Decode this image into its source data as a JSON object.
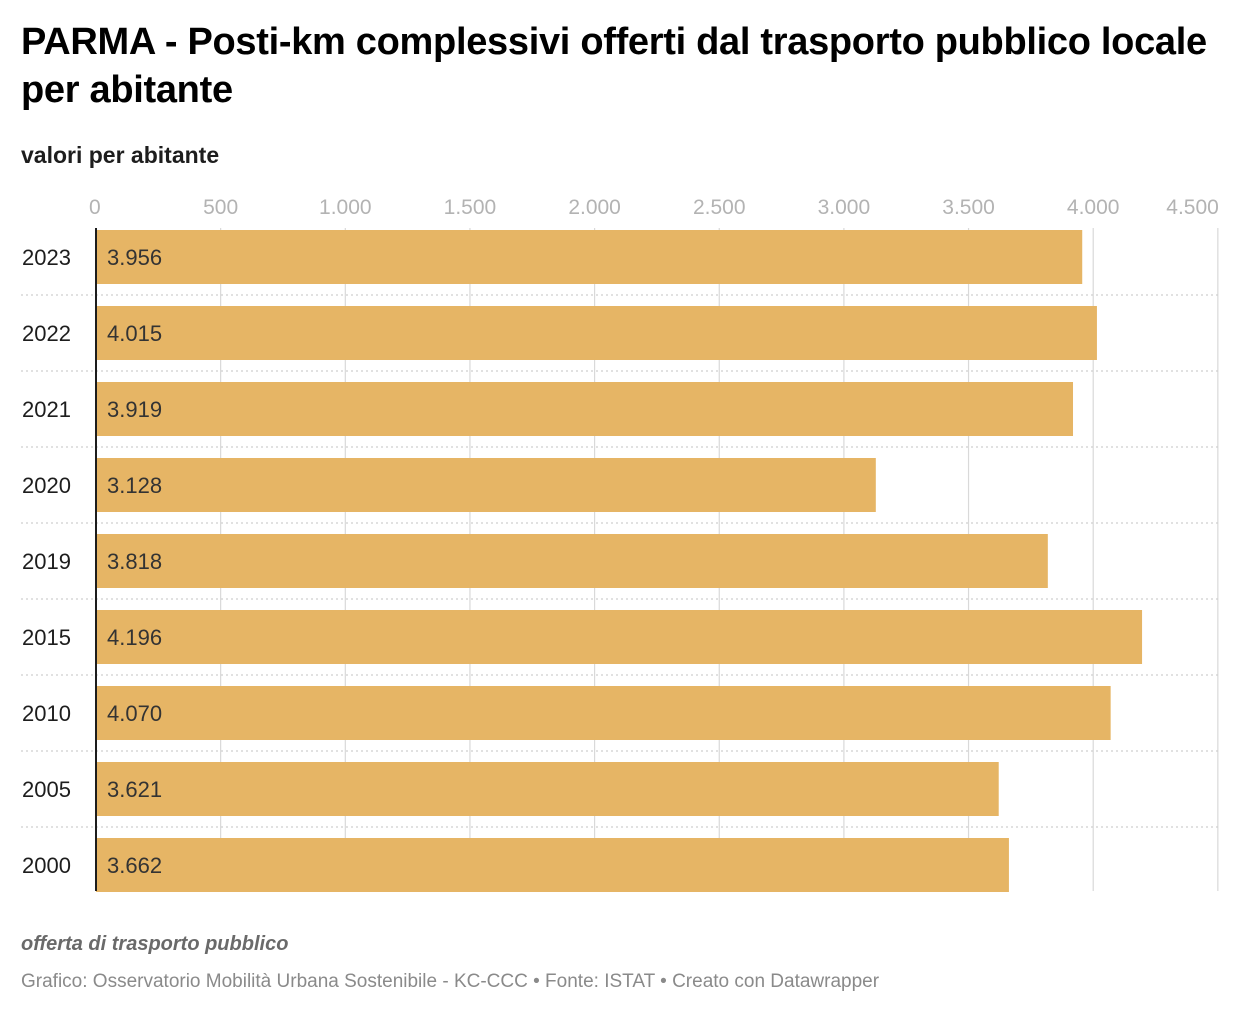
{
  "header": {
    "title": "PARMA - Posti-km complessivi offerti dal trasporto pubblico locale per abitante",
    "subtitle": "valori per abitante"
  },
  "footer": {
    "note": "offerta di trasporto pubblico",
    "credits": "Grafico: Osservatorio Mobilità Urbana Sostenibile - KC-CCC • Fonte: ISTAT • Creato con Datawrapper"
  },
  "colors": {
    "bar": "#e6b565",
    "grid": "#d9d9d9",
    "axis": "#1d1d1d"
  },
  "chart_data": {
    "type": "bar",
    "orientation": "horizontal",
    "categories": [
      "2023",
      "2022",
      "2021",
      "2020",
      "2019",
      "2015",
      "2010",
      "2005",
      "2000"
    ],
    "values": [
      3956,
      4015,
      3919,
      3128,
      3818,
      4196,
      4070,
      3621,
      3662
    ],
    "value_labels": [
      "3.956",
      "4.015",
      "3.919",
      "3.128",
      "3.818",
      "4.196",
      "4.070",
      "3.621",
      "3.662"
    ],
    "ticks": [
      0,
      500,
      1000,
      1500,
      2000,
      2500,
      3000,
      3500,
      4000,
      4500
    ],
    "tick_labels": [
      "0",
      "500",
      "1.000",
      "1.500",
      "2.000",
      "2.500",
      "3.000",
      "3.500",
      "4.000",
      "4.500"
    ],
    "xlim": [
      0,
      4500
    ],
    "xaxis_position": "top",
    "grid": true,
    "legend": "none"
  }
}
